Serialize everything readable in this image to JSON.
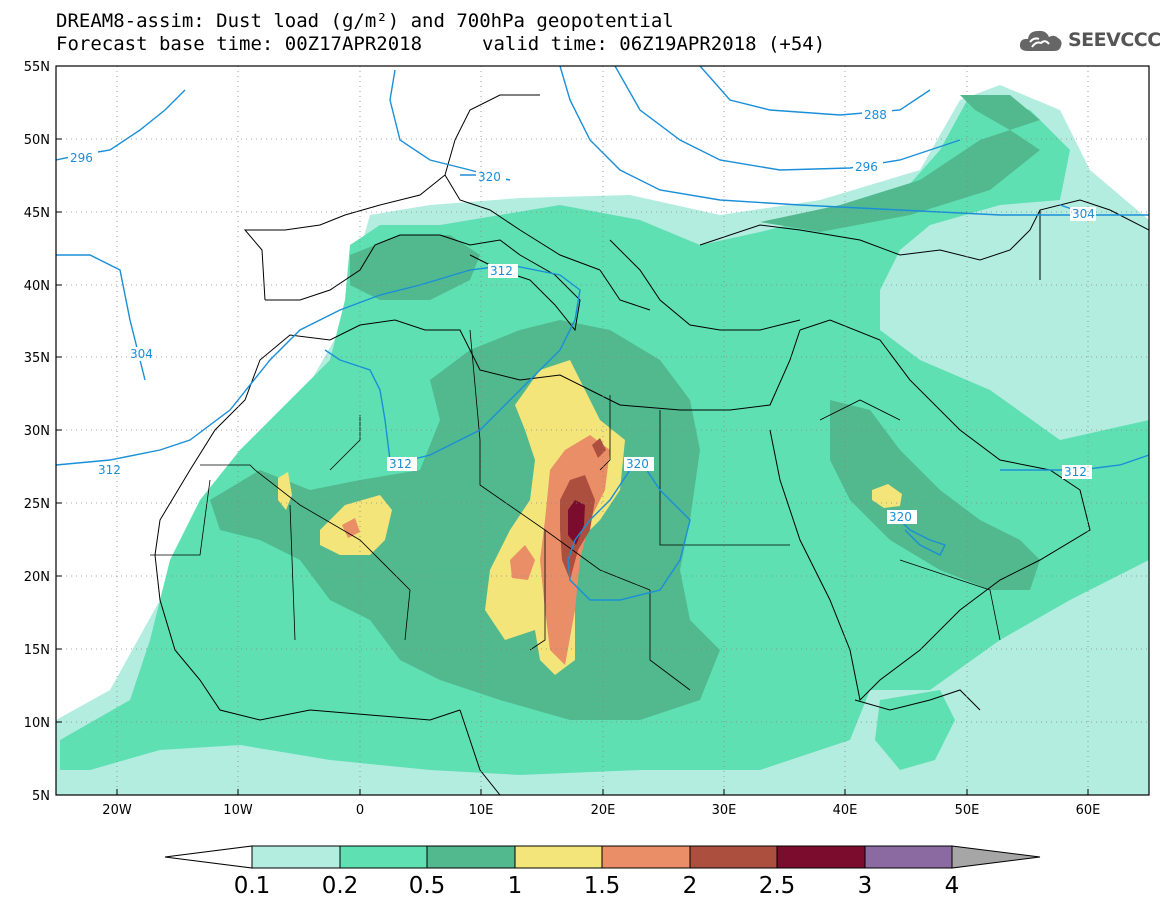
{
  "title_line1": "DREAM8-assim: Dust load (g/m²) and 700hPa geopotential",
  "title_line2": "Forecast base time: 00Z17APR2018",
  "valid_time": "valid time: 06Z19APR2018 (+54)",
  "logo_text": "SEEVCCC",
  "logo_icon": "cloud-icon",
  "colors": {
    "c01": "#b3ede0",
    "c02": "#5ee0b3",
    "c05": "#52b88e",
    "c1": "#f3e57a",
    "c15": "#e98e66",
    "c2": "#ad4f3f",
    "c25": "#7c0c2e",
    "c3": "#8a6aa0",
    "c4": "#a6a6a6",
    "contour": "#1a8fd8"
  },
  "chart_data": {
    "type": "map",
    "projection": "lat-lon",
    "lon_range": [
      -25,
      65
    ],
    "lat_range": [
      5,
      55
    ],
    "lat_ticks": [
      "55N",
      "50N",
      "45N",
      "40N",
      "35N",
      "30N",
      "25N",
      "20N",
      "15N",
      "10N",
      "5N"
    ],
    "lon_ticks": [
      "20W",
      "10W",
      "0",
      "10E",
      "20E",
      "30E",
      "40E",
      "50E",
      "60E"
    ],
    "contour_labels": [
      "296",
      "320",
      "288",
      "296",
      "304",
      "312",
      "304",
      "312",
      "320",
      "312",
      "320"
    ],
    "colorbar": {
      "levels": [
        "0.1",
        "0.2",
        "0.5",
        "1",
        "1.5",
        "2",
        "2.5",
        "3",
        "4"
      ],
      "bins": [
        "c01",
        "c02",
        "c05",
        "c1",
        "c15",
        "c2",
        "c25",
        "c3",
        "c4"
      ]
    }
  }
}
